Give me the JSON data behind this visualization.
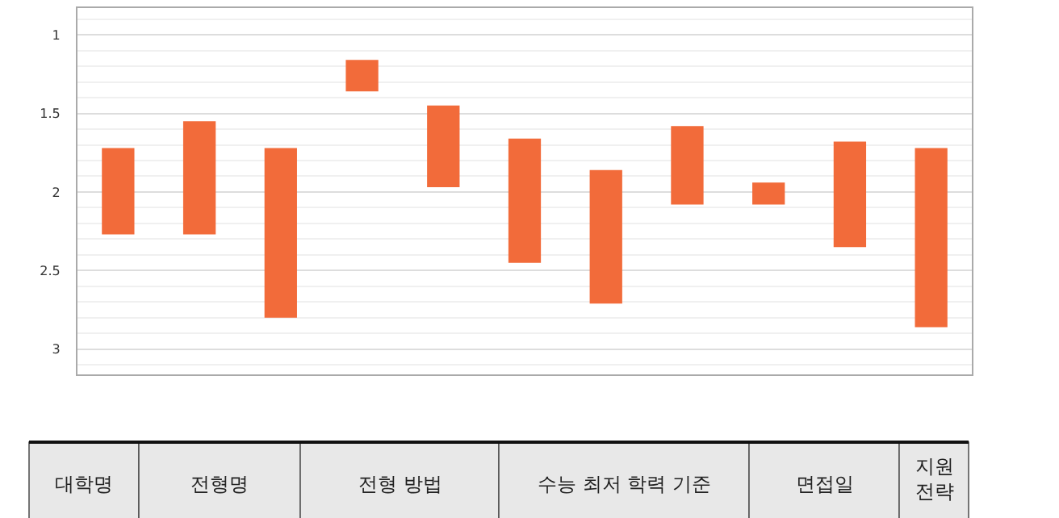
{
  "chart_data": {
    "type": "bar",
    "categories": [
      null,
      null,
      null,
      null,
      null,
      null,
      null,
      null,
      null,
      null,
      null
    ],
    "base": [
      1.72,
      1.55,
      1.72,
      1.16,
      1.45,
      1.66,
      1.86,
      1.58,
      1.94,
      1.68,
      1.72
    ],
    "values": [
      0.55,
      0.72,
      1.08,
      0.2,
      0.52,
      0.79,
      0.85,
      0.5,
      0.14,
      0.67,
      1.14
    ],
    "color": "#f26b3a",
    "ylim": [
      3.16,
      0.83
    ],
    "yticks": [
      1,
      1.5,
      2,
      2.5,
      3
    ],
    "grid": "y",
    "annotations": [
      "대학명",
      "전형명",
      "전형 방법",
      "수능 최저 학력 기준",
      "면접일",
      "지원 전략"
    ]
  }
}
